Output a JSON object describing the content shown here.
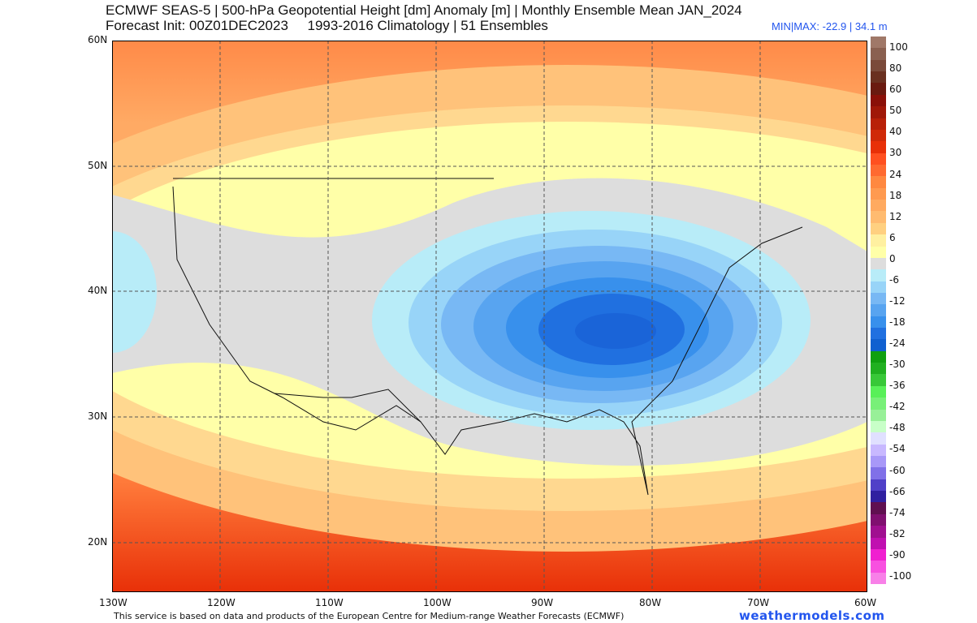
{
  "title_line1": "ECMWF SEAS-5 | 500-hPa Geopotential Height [dm] Anomaly [m] | Monthly Ensemble Mean JAN_2024",
  "title_line2": "Forecast Init: 00Z01DEC2023     1993-2016 Climatology | 51 Ensembles",
  "minmax": "MIN|MAX: -22.9 | 34.1 m",
  "lat_labels": [
    "60N",
    "50N",
    "40N",
    "30N",
    "20N"
  ],
  "lon_labels": [
    "130W",
    "120W",
    "110W",
    "100W",
    "90W",
    "80W",
    "70W",
    "60W"
  ],
  "colorbar": {
    "labels": [
      "100",
      "80",
      "60",
      "50",
      "40",
      "30",
      "24",
      "18",
      "12",
      "6",
      "0",
      "-6",
      "-12",
      "-18",
      "-24",
      "-30",
      "-36",
      "-42",
      "-48",
      "-54",
      "-60",
      "-66",
      "-74",
      "-82",
      "-90",
      "-100"
    ],
    "colors": [
      "#a07868",
      "#8a6050",
      "#7a4a3a",
      "#6a3020",
      "#6a1a10",
      "#8a1008",
      "#a01808",
      "#b82008",
      "#d02a08",
      "#e83008",
      "#ff5020",
      "#ff6a30",
      "#ff8840",
      "#ff9a50",
      "#ffaa60",
      "#ffbb70",
      "#ffd080",
      "#fff0a0",
      "#ffffa8",
      "#dddddd",
      "#b8ecf8",
      "#98d4f8",
      "#78b8f4",
      "#58a4f0",
      "#3890ec",
      "#2070e0",
      "#1060d0",
      "#10a010",
      "#20b020",
      "#38c838",
      "#58f058",
      "#78f078",
      "#98f098",
      "#c8ffc8",
      "#e0e0ff",
      "#c8b8ff",
      "#a898f8",
      "#8070e8",
      "#5040c8",
      "#3020a0",
      "#601050",
      "#801070",
      "#a01090",
      "#c010b0",
      "#f020d0",
      "#f850e0",
      "#f880e8"
    ]
  },
  "map": {
    "anomaly_min_m": -22.9,
    "anomaly_max_m": 34.1,
    "negative_center": "Eastern United States",
    "lon_range": [
      -130,
      -60
    ],
    "lat_range": [
      16,
      60
    ]
  },
  "footer": "This service is based on data and products of the European Centre for Medium-range Weather Forecasts (ECMWF)",
  "brand": "weathermodels.com"
}
